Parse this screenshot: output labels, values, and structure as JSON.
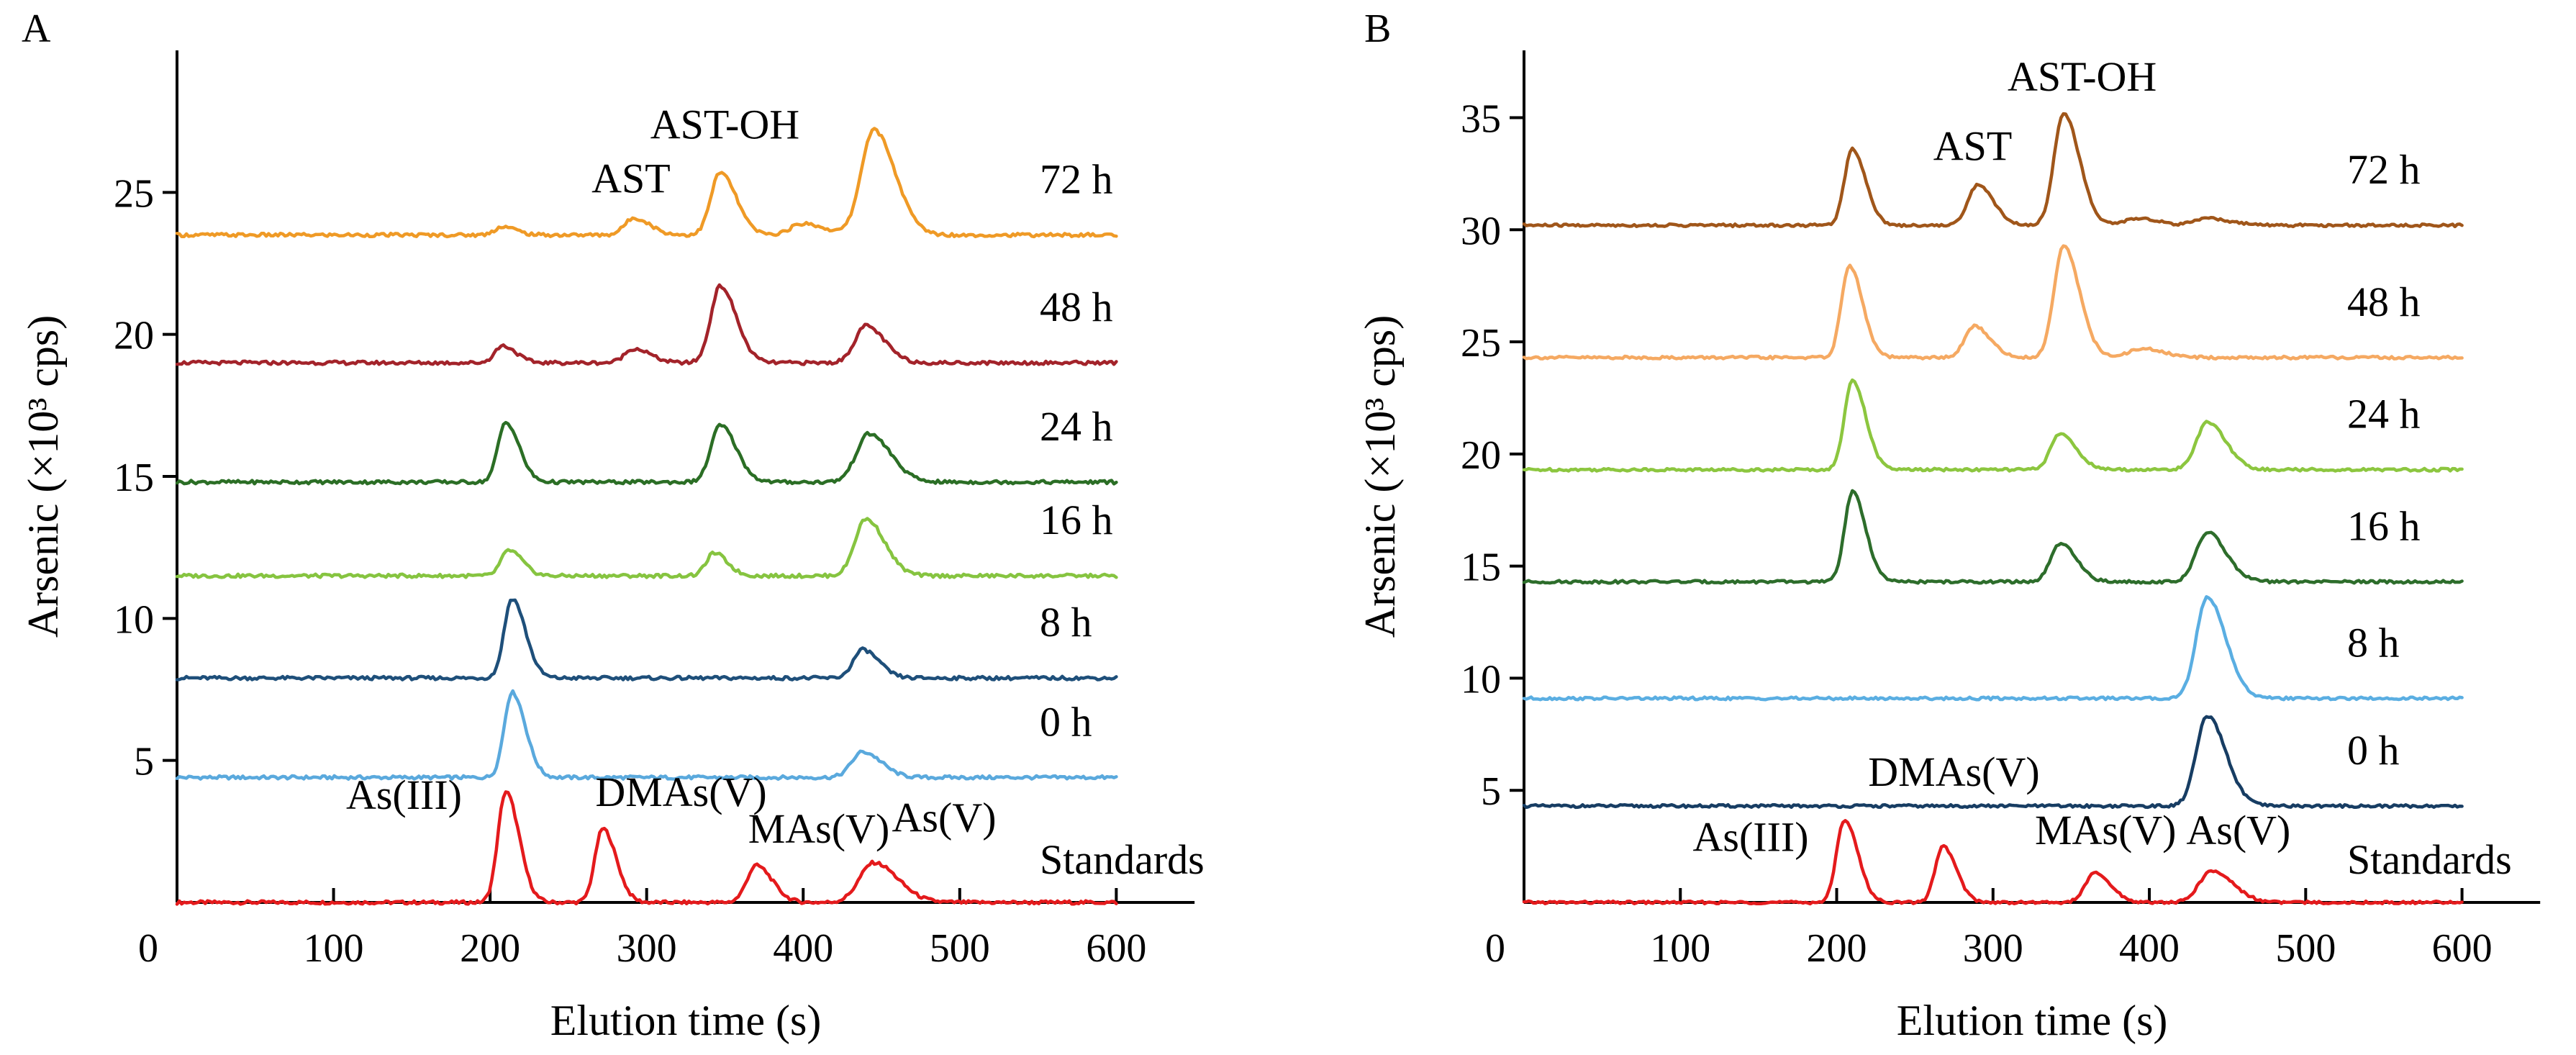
{
  "chart_data": [
    {
      "panel": "A",
      "type": "line",
      "xlabel": "Elution time (s)",
      "ylabel": "Arsenic (×10³ cps)",
      "xlim": [
        0,
        650
      ],
      "ylim": [
        0,
        30
      ],
      "x_ticks": [
        0,
        100,
        200,
        300,
        400,
        500,
        600
      ],
      "y_ticks": [
        5,
        10,
        15,
        20,
        25
      ],
      "grid": false,
      "legend": "none",
      "series": [
        {
          "name": "Standards",
          "color": "#e41a1c",
          "baseline": 0.0,
          "peaks": [
            [
              210,
              3.9,
              5
            ],
            [
              272,
              2.6,
              5
            ],
            [
              370,
              1.3,
              6
            ],
            [
              445,
              1.4,
              9
            ]
          ]
        },
        {
          "name": "0 h",
          "color": "#5aa9dd",
          "baseline": 4.4,
          "peaks": [
            [
              214,
              3.0,
              5
            ],
            [
              438,
              0.9,
              7
            ]
          ]
        },
        {
          "name": "8 h",
          "color": "#1e4f7a",
          "baseline": 7.9,
          "peaks": [
            [
              214,
              2.8,
              5
            ],
            [
              438,
              1.0,
              6
            ]
          ]
        },
        {
          "name": "16 h",
          "color": "#86c440",
          "baseline": 11.5,
          "peaks": [
            [
              212,
              0.9,
              5
            ],
            [
              343,
              0.8,
              5
            ],
            [
              440,
              2.0,
              7
            ]
          ]
        },
        {
          "name": "24 h",
          "color": "#2b6e25",
          "baseline": 14.8,
          "peaks": [
            [
              210,
              2.1,
              5
            ],
            [
              347,
              2.0,
              6
            ],
            [
              442,
              1.7,
              8
            ]
          ]
        },
        {
          "name": "48 h",
          "color": "#a3232a",
          "baseline": 19.0,
          "peaks": [
            [
              208,
              0.6,
              5
            ],
            [
              292,
              0.5,
              6
            ],
            [
              347,
              2.7,
              6
            ],
            [
              440,
              1.3,
              7
            ]
          ]
        },
        {
          "name": "72 h",
          "color": "#ef9a26",
          "baseline": 23.5,
          "peaks": [
            [
              208,
              0.3,
              5
            ],
            [
              292,
              0.6,
              6
            ],
            [
              347,
              2.2,
              6
            ],
            [
              400,
              0.4,
              8
            ],
            [
              445,
              3.7,
              8
            ]
          ]
        }
      ],
      "peak_labels": [
        {
          "text": "As(III)",
          "x": 145,
          "y": 3.3
        },
        {
          "text": "DMAs(V)",
          "x": 322,
          "y": 3.4
        },
        {
          "text": "MAs(V)",
          "x": 410,
          "y": 2.1
        },
        {
          "text": "As(V)",
          "x": 490,
          "y": 2.5
        },
        {
          "text": "AST",
          "x": 290,
          "y": 25.0
        },
        {
          "text": "AST-OH",
          "x": 350,
          "y": 26.9
        }
      ]
    },
    {
      "panel": "B",
      "type": "line",
      "xlabel": "Elution time (s)",
      "ylabel": "Arsenic (×10³ cps)",
      "xlim": [
        0,
        650
      ],
      "ylim": [
        0,
        38
      ],
      "x_ticks": [
        0,
        100,
        200,
        300,
        400,
        500,
        600
      ],
      "y_ticks": [
        5,
        10,
        15,
        20,
        25,
        30,
        35
      ],
      "grid": false,
      "legend": "none",
      "series": [
        {
          "name": "Standards",
          "color": "#e41a1c",
          "baseline": 0.0,
          "peaks": [
            [
              205,
              3.7,
              5
            ],
            [
              268,
              2.5,
              5
            ],
            [
              365,
              1.3,
              6
            ],
            [
              440,
              1.4,
              8
            ]
          ]
        },
        {
          "name": "0 h",
          "color": "#173d63",
          "baseline": 4.3,
          "peaks": [
            [
              437,
              4.0,
              7
            ]
          ]
        },
        {
          "name": "8 h",
          "color": "#5aaee2",
          "baseline": 9.1,
          "peaks": [
            [
              437,
              4.5,
              7
            ]
          ]
        },
        {
          "name": "16 h",
          "color": "#2d6d2b",
          "baseline": 14.3,
          "peaks": [
            [
              210,
              4.0,
              5
            ],
            [
              343,
              1.7,
              6
            ],
            [
              437,
              2.2,
              7
            ]
          ]
        },
        {
          "name": "24 h",
          "color": "#8cc63f",
          "baseline": 19.3,
          "peaks": [
            [
              210,
              4.0,
              5
            ],
            [
              343,
              1.6,
              6
            ],
            [
              437,
              2.1,
              7
            ]
          ]
        },
        {
          "name": "48 h",
          "color": "#f5a962",
          "baseline": 24.3,
          "peaks": [
            [
              208,
              4.1,
              5
            ],
            [
              288,
              1.4,
              6
            ],
            [
              345,
              5.0,
              6
            ],
            [
              395,
              0.4,
              8
            ]
          ]
        },
        {
          "name": "72 h",
          "color": "#a0561a",
          "baseline": 30.2,
          "peaks": [
            [
              210,
              3.4,
              5
            ],
            [
              290,
              1.8,
              6
            ],
            [
              345,
              5.0,
              6
            ],
            [
              392,
              0.3,
              8
            ],
            [
              438,
              0.3,
              8
            ]
          ]
        }
      ],
      "peak_labels": [
        {
          "text": "As(III)",
          "x": 145,
          "y": 2.3
        },
        {
          "text": "DMAs(V)",
          "x": 275,
          "y": 5.2
        },
        {
          "text": "MAs(V)",
          "x": 372,
          "y": 2.6
        },
        {
          "text": "As(V)",
          "x": 457,
          "y": 2.6
        },
        {
          "text": "AST",
          "x": 287,
          "y": 33.1
        },
        {
          "text": "AST-OH",
          "x": 357,
          "y": 36.2
        }
      ]
    }
  ]
}
